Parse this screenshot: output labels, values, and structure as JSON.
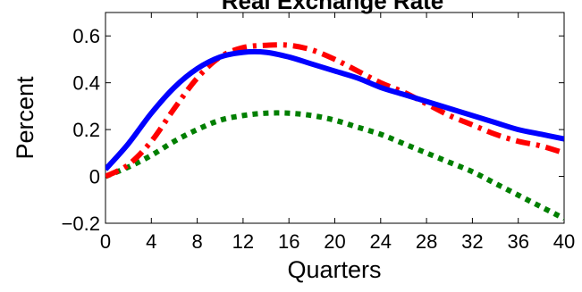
{
  "chart_data": {
    "type": "line",
    "title": "Real Exchange Rate",
    "xlabel": "Quarters",
    "ylabel": "Percent",
    "xlim": [
      0,
      40
    ],
    "ylim": [
      -0.2,
      0.7
    ],
    "x_ticks": [
      0,
      4,
      8,
      12,
      16,
      20,
      24,
      28,
      32,
      36,
      40
    ],
    "y_ticks": [
      -0.2,
      0,
      0.2,
      0.4,
      0.6
    ],
    "y_tick_labels": [
      "−0.2",
      "0",
      "0.2",
      "0.4",
      "0.6"
    ],
    "grid": false,
    "legend": "none",
    "x": [
      0,
      2,
      4,
      6,
      8,
      10,
      12,
      14,
      16,
      18,
      20,
      22,
      24,
      26,
      28,
      30,
      32,
      34,
      36,
      38,
      40
    ],
    "series": [
      {
        "color": "#0000ff",
        "line_style": "solid",
        "values": [
          0.03,
          0.14,
          0.27,
          0.38,
          0.46,
          0.51,
          0.53,
          0.53,
          0.51,
          0.48,
          0.45,
          0.42,
          0.38,
          0.35,
          0.32,
          0.29,
          0.26,
          0.23,
          0.2,
          0.18,
          0.16
        ]
      },
      {
        "color": "#ff0000",
        "line_style": "dashdot",
        "values": [
          0.0,
          0.05,
          0.15,
          0.29,
          0.42,
          0.51,
          0.55,
          0.56,
          0.56,
          0.54,
          0.5,
          0.45,
          0.4,
          0.36,
          0.31,
          0.26,
          0.22,
          0.18,
          0.15,
          0.13,
          0.1
        ]
      },
      {
        "color": "#007f00",
        "line_style": "dotted",
        "values": [
          0.0,
          0.04,
          0.09,
          0.15,
          0.2,
          0.24,
          0.26,
          0.27,
          0.27,
          0.26,
          0.24,
          0.21,
          0.18,
          0.14,
          0.1,
          0.06,
          0.02,
          -0.03,
          -0.08,
          -0.13,
          -0.18
        ]
      }
    ]
  }
}
